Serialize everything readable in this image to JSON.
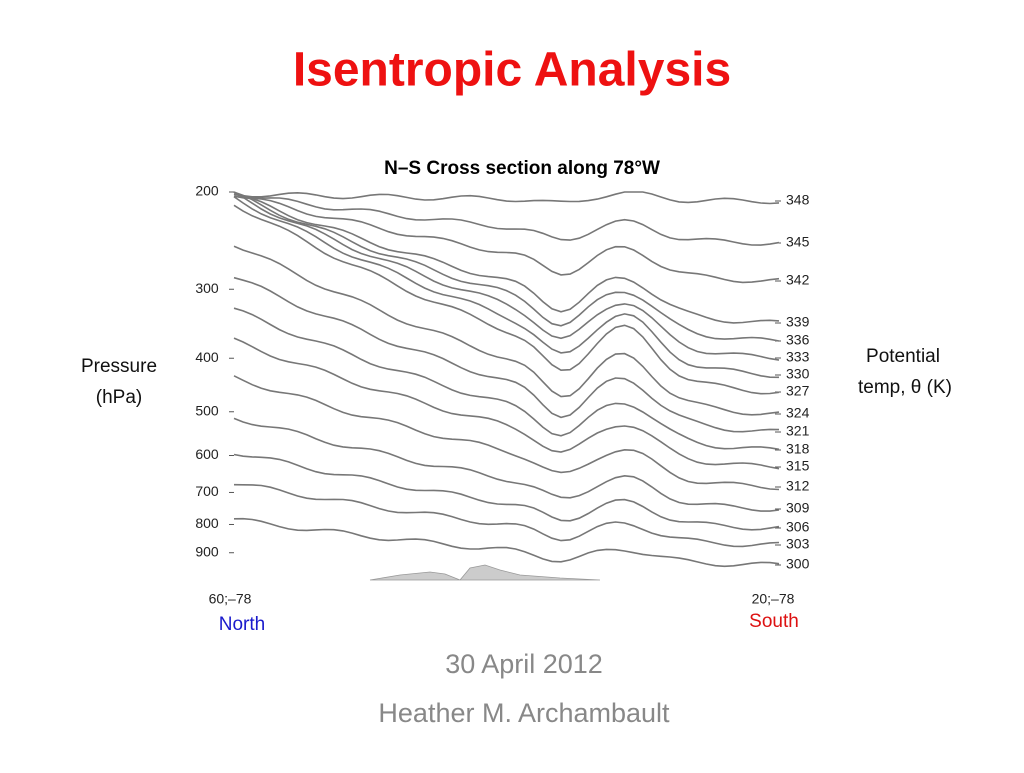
{
  "title": "Isentropic Analysis",
  "chart_data": {
    "type": "contour",
    "title": "N–S Cross section along 78°W",
    "y_label": [
      "Pressure",
      "(hPa)"
    ],
    "y2_label": [
      "Potential",
      "temp, θ (K)"
    ],
    "log_scale": true,
    "ylim": [
      200,
      1000
    ],
    "yticks": [
      200,
      300,
      400,
      500,
      600,
      700,
      800,
      900
    ],
    "x_labels": [
      "60;–78",
      "20;–78"
    ],
    "x_directions": [
      "North",
      "South"
    ],
    "contours": [
      348,
      345,
      342,
      339,
      336,
      333,
      330,
      327,
      324,
      321,
      318,
      315,
      312,
      309,
      306,
      303,
      300
    ]
  },
  "date": "30 April 2012",
  "author": "Heather M. Archambault"
}
